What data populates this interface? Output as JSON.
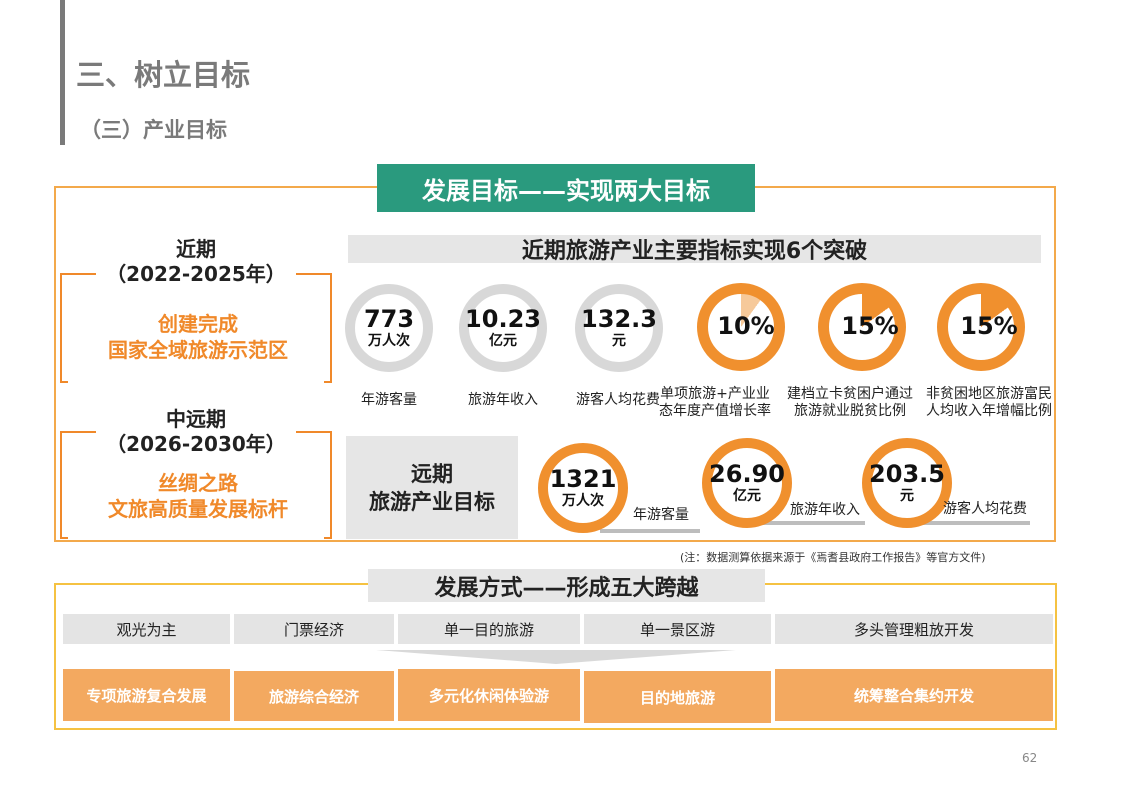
{
  "header": {
    "title": "三、树立目标",
    "subtitle": "（三）产业目标"
  },
  "goal_banner": "发展目标——实现两大目标",
  "phases": {
    "near": {
      "title": "近期",
      "period": "（2022-2025年）",
      "line1": "创建完成",
      "line2": "国家全域旅游示范区"
    },
    "mid": {
      "title": "中远期",
      "period": "（2026-2030年）",
      "line1": "丝绸之路",
      "line2": "文旅高质量发展标杆"
    }
  },
  "near_heading": "近期旅游产业主要指标实现6个突破",
  "near_metrics": [
    {
      "value": "773",
      "unit": "万人次",
      "label1": "年游客量",
      "label2": ""
    },
    {
      "value": "10.23",
      "unit": "亿元",
      "label1": "旅游年收入",
      "label2": ""
    },
    {
      "value": "132.3",
      "unit": "元",
      "label1": "游客人均花费",
      "label2": ""
    },
    {
      "value": "10%",
      "unit": "",
      "label1": "单项旅游+产业业",
      "label2": "态年度产值增长率",
      "percent": 10
    },
    {
      "value": "15%",
      "unit": "",
      "label1": "建档立卡贫困户通过",
      "label2": "旅游就业脱贫比例",
      "percent": 15
    },
    {
      "value": "15%",
      "unit": "",
      "label1": "非贫困地区旅游富民",
      "label2": "人均收入年增幅比例",
      "percent": 15
    }
  ],
  "far_box": {
    "line1": "远期",
    "line2": "旅游产业目标"
  },
  "far_metrics": [
    {
      "value": "1321",
      "unit": "万人次",
      "label": "年游客量"
    },
    {
      "value": "26.90",
      "unit": "亿元",
      "label": "旅游年收入"
    },
    {
      "value": "203.5",
      "unit": "元",
      "label": "游客人均花费"
    }
  ],
  "note": "(注：数据测算依据来源于《焉耆县政府工作报告》等官方文件)",
  "mode_heading": "发展方式——形成五大跨越",
  "from_items": [
    "观光为主",
    "门票经济",
    "单一目的旅游",
    "单一景区游",
    "多头管理粗放开发"
  ],
  "to_items": [
    "专项旅游复合发展",
    "旅游综合经济",
    "多元化休闲体验游",
    "目的地旅游",
    "统筹整合集约开发"
  ],
  "page_number": "62",
  "colors": {
    "teal": "#2a9a7e",
    "orange": "#f0902e",
    "light_orange": "#f3a960",
    "gray": "#e6e6e6"
  }
}
